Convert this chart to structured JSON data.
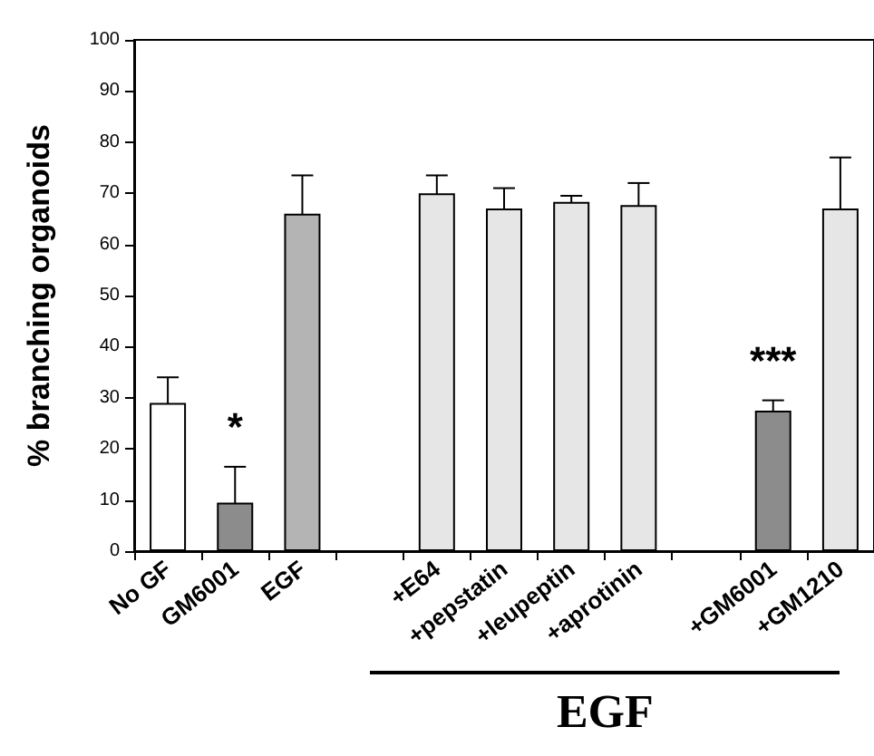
{
  "chart_data": {
    "type": "bar",
    "ylabel": "% branching organoids",
    "categories": [
      "No GF",
      "GM6001",
      "EGF",
      null,
      "+E64",
      "+pepstatin",
      "+leupeptin",
      "+aprotinin",
      null,
      "+GM6001",
      "+GM1210"
    ],
    "values": [
      29,
      9.5,
      66,
      null,
      70,
      67,
      68.3,
      67.7,
      null,
      27.5,
      67
    ],
    "errors": [
      5,
      7,
      7.5,
      null,
      3.5,
      4,
      1.2,
      4.3,
      null,
      2,
      10
    ],
    "colors": [
      "#ffffff",
      "#8c8c8c",
      "#b4b4b4",
      "#ffffff",
      "#e6e6e6",
      "#e6e6e6",
      "#e6e6e6",
      "#e6e6e6",
      "#ffffff",
      "#8c8c8c",
      "#e6e6e6"
    ],
    "ylim": [
      0,
      100
    ],
    "yticks": [
      0,
      10,
      20,
      30,
      40,
      50,
      60,
      70,
      80,
      90,
      100
    ],
    "grid": false,
    "annotations": [
      "*",
      "***",
      "EGF"
    ]
  }
}
